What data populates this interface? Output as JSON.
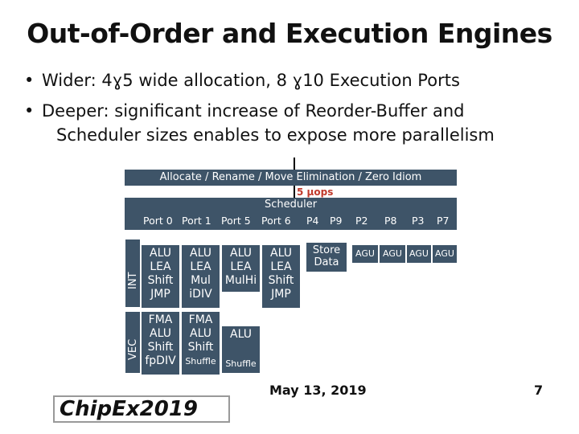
{
  "title": "Out-of-Order and Execution Engines",
  "bullets": [
    {
      "prefix": "Wider: 4",
      "glyph1": "ɣ",
      "mid": "5 wide allocation, 8 ",
      "glyph2": "ɣ",
      "suffix": "10 Execution Ports"
    },
    {
      "line1": "Deeper: significant increase of Reorder-Buffer and",
      "line2": "Scheduler sizes enables to expose more parallelism"
    }
  ],
  "diagram": {
    "allocate_bar": "Allocate / Rename / Move Elimination / Zero Idiom",
    "uops_label": "5 μops",
    "scheduler": "Scheduler",
    "ports": [
      "Port 0",
      "Port 1",
      "Port 5",
      "Port 6",
      "P4",
      "P9",
      "P2",
      "P8",
      "P3",
      "P7"
    ],
    "int_label": "INT",
    "vec_label": "VEC",
    "int_units": [
      [
        "ALU",
        "LEA",
        "Shift",
        "JMP"
      ],
      [
        "ALU",
        "LEA",
        "Mul",
        "iDIV"
      ],
      [
        "ALU",
        "LEA",
        "MulHi"
      ],
      [
        "ALU",
        "LEA",
        "Shift",
        "JMP"
      ]
    ],
    "store_data": [
      "Store",
      "Data"
    ],
    "agu_units": [
      "AGU",
      "AGU",
      "AGU",
      "AGU"
    ],
    "vec_units": [
      [
        "FMA",
        "ALU",
        "Shift",
        "fpDIV"
      ],
      [
        "FMA",
        "ALU",
        "Shift",
        "Shuffle"
      ],
      [
        "ALU",
        "Shuffle"
      ]
    ]
  },
  "footer": {
    "logo_text": "ChipEx2019",
    "date": "May 13, 2019",
    "page": "7"
  },
  "colors": {
    "block": "#3e5468",
    "accent": "#c0392b"
  }
}
